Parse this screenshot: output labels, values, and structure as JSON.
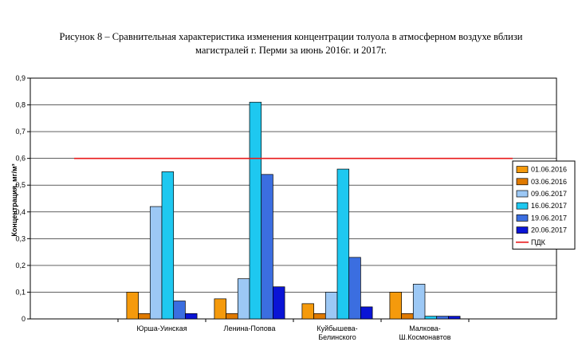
{
  "caption": {
    "line1": "Рисунок 8 – Сравнительная характеристика изменения концентрации толуола в атмосферном воздухе вблизи",
    "line2": "магистралей г. Перми за июнь 2016г. и 2017г."
  },
  "chart_data": {
    "type": "bar",
    "ylabel": "Концентрация, мг/м³",
    "ylim": [
      0,
      0.9
    ],
    "yticks": [
      "0",
      "0,1",
      "0,2",
      "0,3",
      "0,4",
      "0,5",
      "0,6",
      "0,7",
      "0,8",
      "0,9"
    ],
    "grid": "horizontal",
    "legend_position": "right",
    "categories": [
      "",
      [
        "Юрша-Уинская"
      ],
      [
        "Ленина-Попова"
      ],
      [
        "Куйбышева-",
        "Белинского"
      ],
      [
        "Малкова-",
        "Ш.Космонавтов"
      ],
      ""
    ],
    "series": [
      {
        "name": "01.06.2016",
        "color": "#f59a0c",
        "values": [
          null,
          0.1,
          0.075,
          0.057,
          0.1,
          null
        ]
      },
      {
        "name": "03.06.2016",
        "color": "#e07a00",
        "values": [
          null,
          0.02,
          0.02,
          0.02,
          0.02,
          null
        ]
      },
      {
        "name": "09.06.2017",
        "color": "#9cc8f5",
        "values": [
          null,
          0.42,
          0.15,
          0.1,
          0.13,
          null
        ]
      },
      {
        "name": "16.06.2017",
        "color": "#1ec8f0",
        "values": [
          null,
          0.55,
          0.81,
          0.56,
          0.01,
          null
        ]
      },
      {
        "name": "19.06.2017",
        "color": "#3b6ee0",
        "values": [
          null,
          0.067,
          0.54,
          0.23,
          0.01,
          null
        ]
      },
      {
        "name": "20.06.2017",
        "color": "#0a14d6",
        "values": [
          null,
          0.02,
          0.12,
          0.045,
          0.01,
          null
        ]
      }
    ],
    "reference_line": {
      "name": "ПДК",
      "value": 0.6,
      "color": "#e8191a"
    }
  }
}
